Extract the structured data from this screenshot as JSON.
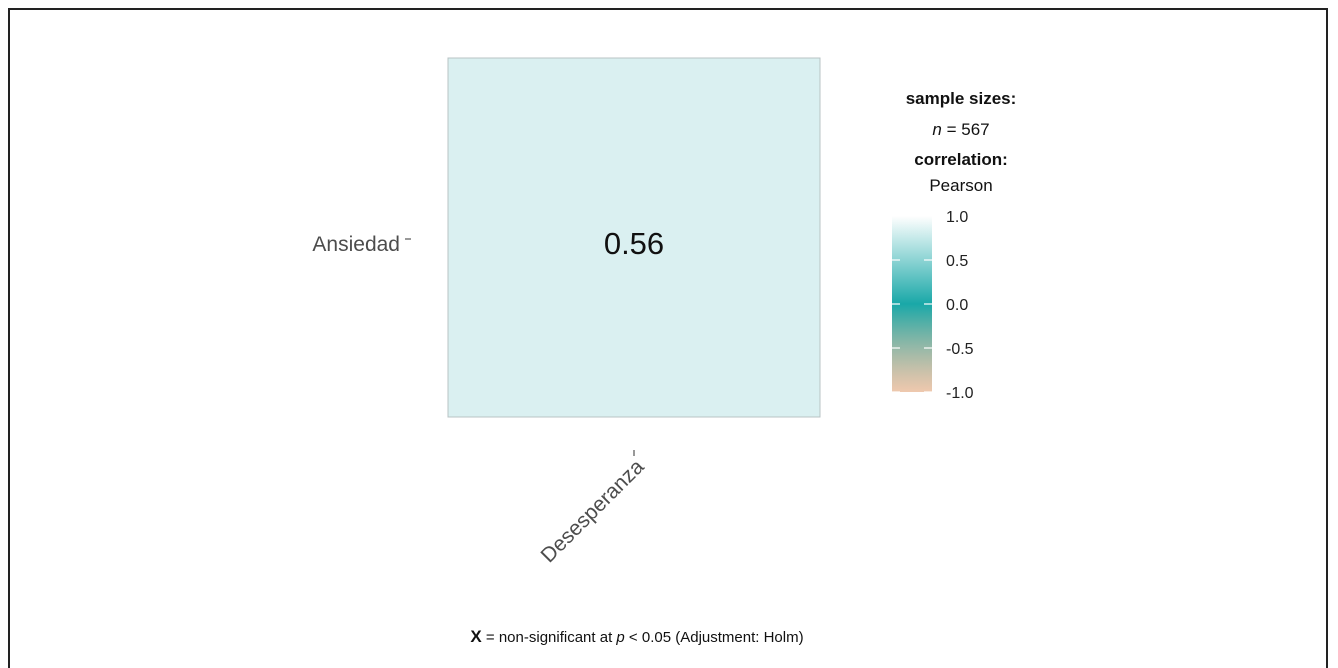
{
  "chart_data": {
    "type": "heatmap",
    "x_categories": [
      "Desesperanza"
    ],
    "y_categories": [
      "Ansiedad"
    ],
    "cells": [
      {
        "x": "Desesperanza",
        "y": "Ansiedad",
        "value": 0.56,
        "label": "0.56"
      }
    ],
    "legend": {
      "sample_sizes_title": "sample sizes:",
      "n_prefix": "n",
      "n_suffix": " = 567",
      "n_value": 567,
      "correlation_title": "correlation:",
      "correlation_method": "Pearson",
      "ticks": [
        "1.0",
        "0.5",
        "0.0",
        "-0.5",
        "-1.0"
      ],
      "tick_values": [
        1.0,
        0.5,
        0.0,
        -0.5,
        -1.0
      ],
      "range": [
        -1.0,
        1.0
      ],
      "colors": {
        "low": "#E6AB82",
        "mid": "#009E9E",
        "high": "#FFFFFF"
      }
    },
    "caption": {
      "symbol": "X",
      "text_before_p": " = non-significant at ",
      "p_symbol": "p",
      "text_after_p": " < 0.05 (Adjustment: Holm)"
    },
    "cell_fill": "#DAF0F1",
    "grid": false
  }
}
